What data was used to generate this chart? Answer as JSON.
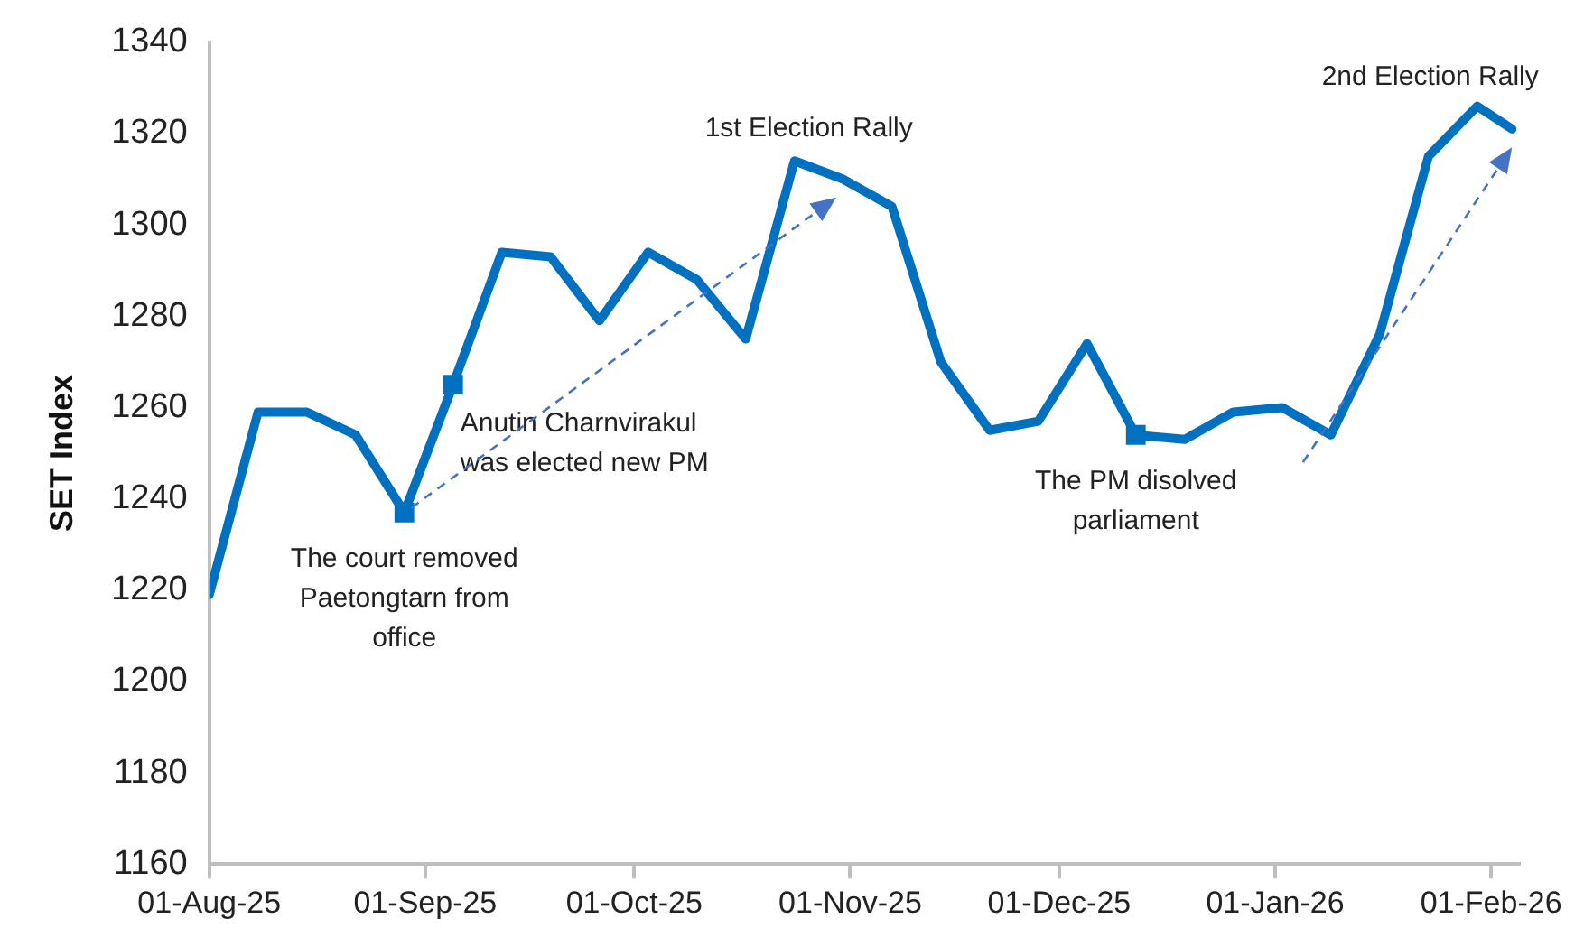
{
  "chart_data": {
    "type": "line",
    "ylabel": "SET Index",
    "x": [
      "2025-08-01",
      "2025-08-08",
      "2025-08-15",
      "2025-08-22",
      "2025-08-29",
      "2025-09-05",
      "2025-09-12",
      "2025-09-19",
      "2025-09-26",
      "2025-10-03",
      "2025-10-10",
      "2025-10-17",
      "2025-10-24",
      "2025-10-31",
      "2025-11-07",
      "2025-11-14",
      "2025-11-21",
      "2025-11-28",
      "2025-12-05",
      "2025-12-12",
      "2025-12-19",
      "2025-12-26",
      "2026-01-02",
      "2026-01-09",
      "2026-01-16",
      "2026-01-23",
      "2026-01-30",
      "2026-02-04"
    ],
    "series": [
      {
        "color": "#0070c0",
        "values": [
          1219,
          1259,
          1259,
          1254,
          1237,
          1265,
          1294,
          1293,
          1279,
          1294,
          1288,
          1275,
          1314,
          1310,
          1304,
          1270,
          1255,
          1257,
          1274,
          1254,
          1253,
          1259,
          1260,
          1254,
          1276,
          1315,
          1326,
          1321
        ]
      },
      {
        "type": "scatter",
        "marker": "square",
        "color": "#0070c0",
        "x": [
          "2025-08-29",
          "2025-09-05",
          "2025-12-12"
        ],
        "values": [
          1237,
          1265,
          1254
        ]
      }
    ],
    "xlim": [
      "2025-08-01",
      "2026-02-05"
    ],
    "xticks": [
      {
        "value": "2025-08-01",
        "label": "01-Aug-25"
      },
      {
        "value": "2025-09-01",
        "label": "01-Sep-25"
      },
      {
        "value": "2025-10-01",
        "label": "01-Oct-25"
      },
      {
        "value": "2025-11-01",
        "label": "01-Nov-25"
      },
      {
        "value": "2025-12-01",
        "label": "01-Dec-25"
      },
      {
        "value": "2026-01-01",
        "label": "01-Jan-26"
      },
      {
        "value": "2026-02-01",
        "label": "01-Feb-26"
      }
    ],
    "ylim": [
      1160,
      1340
    ],
    "yticks": [
      1160,
      1180,
      1200,
      1220,
      1240,
      1260,
      1280,
      1300,
      1320,
      1340
    ],
    "grid": false,
    "legend": false,
    "marker": "none",
    "line_style": "solid",
    "annotations": [
      {
        "text": "The court removed\nPaetongtarn from\noffice",
        "x": "2025-08-29",
        "y": 1237
      },
      {
        "text": "Anutin Charnvirakul\nwas elected new PM",
        "x": "2025-09-05",
        "y": 1265
      },
      {
        "text": "1st Election Rally",
        "x": "2025-10-24",
        "y": 1314
      },
      {
        "text": "The PM disolved\nparliament",
        "x": "2025-12-12",
        "y": 1254
      },
      {
        "text": "2nd Election Rally",
        "x": "2026-01-30",
        "y": 1326
      }
    ]
  }
}
